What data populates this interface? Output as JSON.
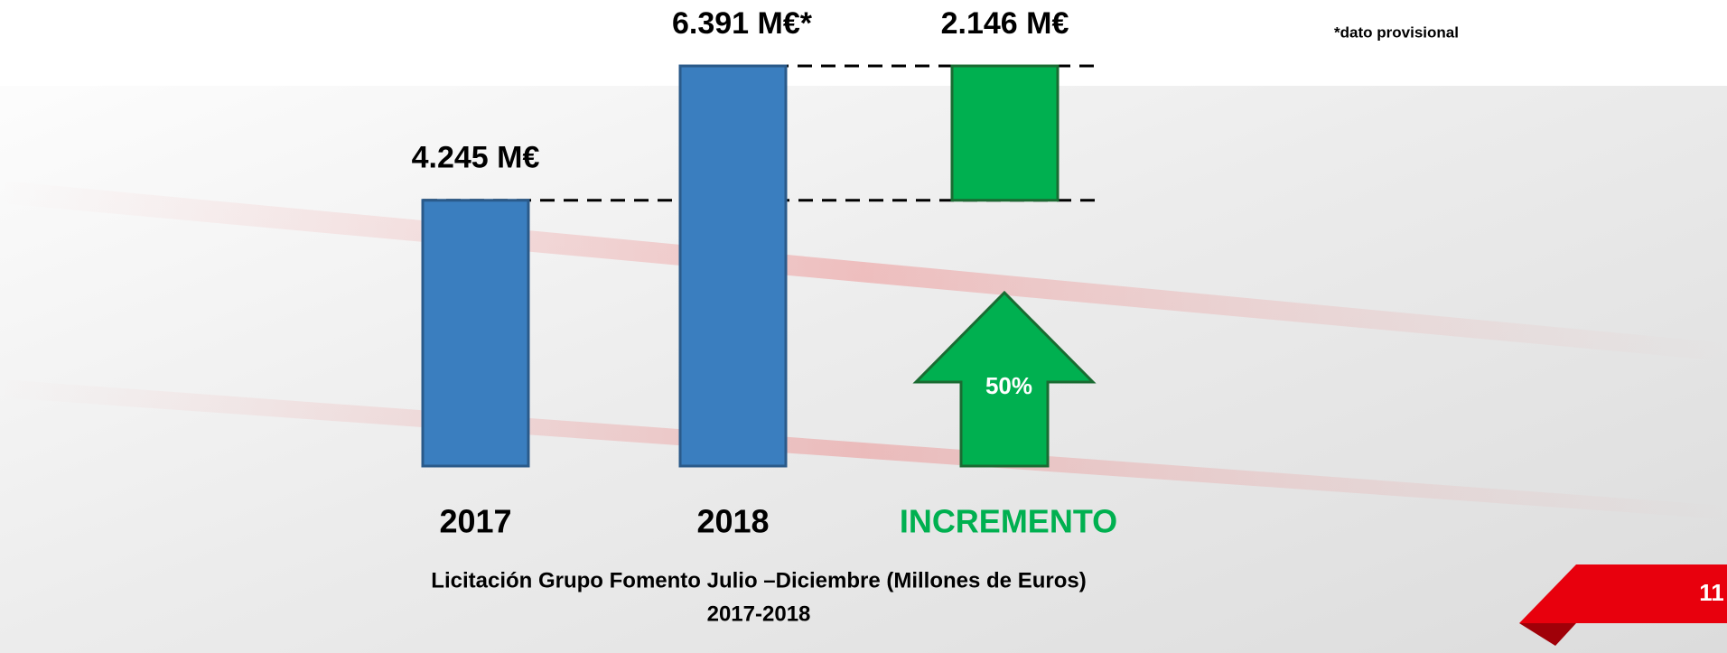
{
  "chart_data": {
    "type": "bar",
    "categories": [
      "2017",
      "2018",
      "INCREMENTO"
    ],
    "values": [
      4245,
      6391,
      2146
    ],
    "value_labels": [
      "4.245 M€",
      "6.391 M€*",
      "2.146 M€"
    ],
    "colors": [
      "#3a7ebf",
      "#3a7ebf",
      "#00b050"
    ],
    "category_colors": [
      "#000000",
      "#000000",
      "#00b050"
    ],
    "annotation": "50%",
    "footnote": "*dato provisional",
    "caption": [
      "Licitación Grupo Fomento Julio –Diciembre (Millones de Euros)",
      "2017-2018"
    ],
    "page_number": "11"
  }
}
